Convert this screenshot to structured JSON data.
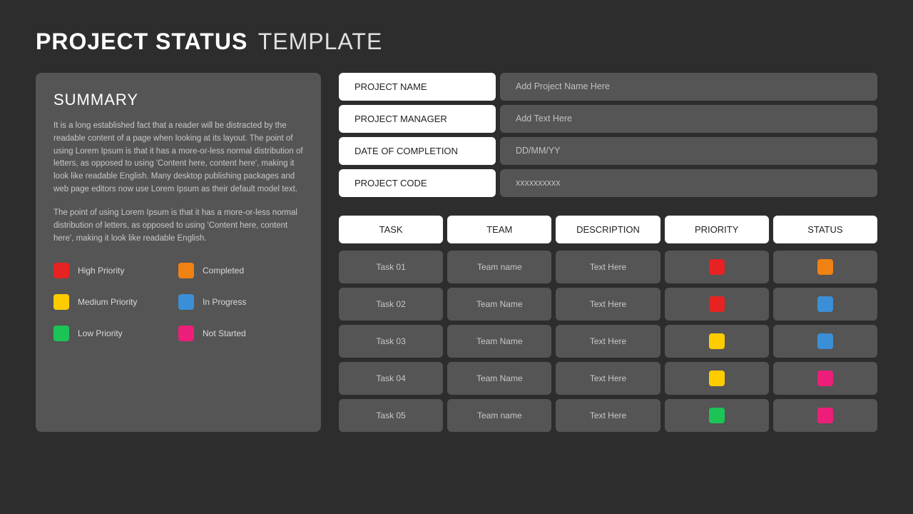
{
  "colors": {
    "bg": "#2d2d2d",
    "panel": "#555555",
    "white": "#ffffff",
    "text_light": "#c8c8c8",
    "high_priority": "#e62222",
    "medium_priority": "#ffcc00",
    "low_priority": "#1bc455",
    "completed": "#ef8212",
    "in_progress": "#3b8fd6",
    "not_started": "#ed1e79"
  },
  "title": {
    "main": "PROJECT STATUS",
    "sub": "TEMPLATE"
  },
  "summary": {
    "heading": "SUMMARY",
    "p1": "It is a long established fact that a reader will be distracted by the readable content of a page when looking at its layout.  The point of using Lorem Ipsum is that it has a more-or-less normal distribution of letters, as opposed to using 'Content here, content here', making it look like readable English. Many desktop publishing packages and web page editors now use Lorem Ipsum as their default model text.",
    "p2": "The point of using Lorem Ipsum is that it has a more-or-less normal distribution  of letters, as opposed to using 'Content here, content here', making it look like readable English."
  },
  "legend": [
    {
      "label": "High Priority",
      "color": "#e62222"
    },
    {
      "label": "Completed",
      "color": "#ef8212"
    },
    {
      "label": "Medium Priority",
      "color": "#ffcc00"
    },
    {
      "label": "In Progress",
      "color": "#3b8fd6"
    },
    {
      "label": "Low Priority",
      "color": "#1bc455"
    },
    {
      "label": "Not Started",
      "color": "#ed1e79"
    }
  ],
  "meta": [
    {
      "label": "PROJECT NAME",
      "value": "Add Project Name Here"
    },
    {
      "label": "PROJECT MANAGER",
      "value": "Add Text Here"
    },
    {
      "label": "DATE OF COMPLETION",
      "value": "DD/MM/YY"
    },
    {
      "label": "PROJECT CODE",
      "value": "xxxxxxxxxx"
    }
  ],
  "table": {
    "columns": [
      "TASK",
      "TEAM",
      "DESCRIPTION",
      "PRIORITY",
      "STATUS"
    ],
    "rows": [
      {
        "task": "Task 01",
        "team": "Team name",
        "desc": "Text Here",
        "priority_color": "#e62222",
        "status_color": "#ef8212"
      },
      {
        "task": "Task 02",
        "team": "Team Name",
        "desc": "Text Here",
        "priority_color": "#e62222",
        "status_color": "#3b8fd6"
      },
      {
        "task": "Task 03",
        "team": "Team Name",
        "desc": "Text Here",
        "priority_color": "#ffcc00",
        "status_color": "#3b8fd6"
      },
      {
        "task": "Task 04",
        "team": "Team Name",
        "desc": "Text Here",
        "priority_color": "#ffcc00",
        "status_color": "#ed1e79"
      },
      {
        "task": "Task 05",
        "team": "Team name",
        "desc": "Text Here",
        "priority_color": "#1bc455",
        "status_color": "#ed1e79"
      }
    ]
  }
}
